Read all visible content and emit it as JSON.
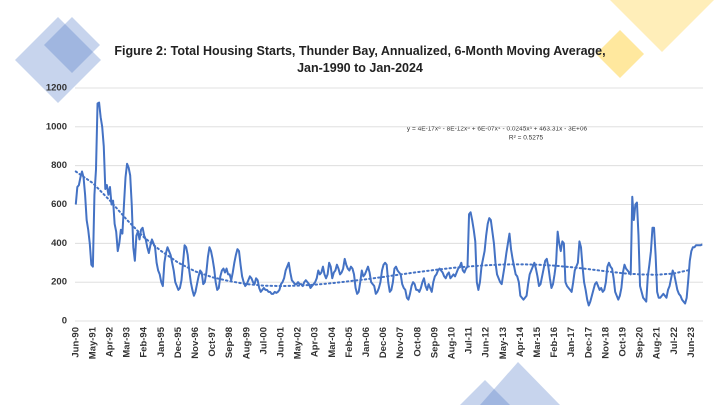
{
  "chart_data": {
    "type": "line",
    "title": "Figure 2: Total Housing Starts, Thunder Bay, Annualized, 6-Month Moving Average, Jan-1990 to Jan-2024",
    "annotations": [
      "y = 4E-17x⁶ - 8E-12x⁵ + 6E-07x⁴ - 0.0245x³ + 463.31x - 3E+06",
      "R² = 0.5275"
    ],
    "ylim": [
      0,
      1200
    ],
    "yticks": [
      0,
      200,
      400,
      600,
      800,
      1000,
      1200
    ],
    "grid": true,
    "categories": [
      "Jun-90",
      null,
      null,
      null,
      null,
      null,
      null,
      null,
      null,
      null,
      null,
      "May-91",
      null,
      null,
      null,
      null,
      null,
      null,
      null,
      null,
      null,
      null,
      "Apr-92",
      null,
      null,
      null,
      null,
      null,
      null,
      null,
      null,
      null,
      null,
      "Mar-93",
      null,
      null,
      null,
      null,
      null,
      null,
      null,
      null,
      null,
      null,
      "Feb-94",
      null,
      null,
      null,
      null,
      null,
      null,
      null,
      null,
      null,
      null,
      "Jan-95",
      null,
      null,
      null,
      null,
      null,
      null,
      null,
      null,
      null,
      null,
      "Dec-95",
      null,
      null,
      null,
      null,
      null,
      null,
      null,
      null,
      null,
      null,
      "Nov-96",
      null,
      null,
      null,
      null,
      null,
      null,
      null,
      null,
      null,
      null,
      "Oct-97",
      null,
      null,
      null,
      null,
      null,
      null,
      null,
      null,
      null,
      null,
      "Sep-98",
      null,
      null,
      null,
      null,
      null,
      null,
      null,
      null,
      null,
      null,
      "Aug-99",
      null,
      null,
      null,
      null,
      null,
      null,
      null,
      null,
      null,
      null,
      "Jul-00",
      null,
      null,
      null,
      null,
      null,
      null,
      null,
      null,
      null,
      null,
      "Jun-01",
      null,
      null,
      null,
      null,
      null,
      null,
      null,
      null,
      null,
      null,
      "May-02",
      null,
      null,
      null,
      null,
      null,
      null,
      null,
      null,
      null,
      null,
      "Apr-03",
      null,
      null,
      null,
      null,
      null,
      null,
      null,
      null,
      null,
      null,
      "Mar-04",
      null,
      null,
      null,
      null,
      null,
      null,
      null,
      null,
      null,
      null,
      "Feb-05",
      null,
      null,
      null,
      null,
      null,
      null,
      null,
      null,
      null,
      null,
      "Jan-06",
      null,
      null,
      null,
      null,
      null,
      null,
      null,
      null,
      null,
      null,
      "Dec-06",
      null,
      null,
      null,
      null,
      null,
      null,
      null,
      null,
      null,
      null,
      "Nov-07",
      null,
      null,
      null,
      null,
      null,
      null,
      null,
      null,
      null,
      null,
      "Oct-08",
      null,
      null,
      null,
      null,
      null,
      null,
      null,
      null,
      null,
      null,
      "Sep-09",
      null,
      null,
      null,
      null,
      null,
      null,
      null,
      null,
      null,
      null,
      "Aug-10",
      null,
      null,
      null,
      null,
      null,
      null,
      null,
      null,
      null,
      null,
      "Jul-11",
      null,
      null,
      null,
      null,
      null,
      null,
      null,
      null,
      null,
      null,
      "Jun-12",
      null,
      null,
      null,
      null,
      null,
      null,
      null,
      null,
      null,
      null,
      "May-13",
      null,
      null,
      null,
      null,
      null,
      null,
      null,
      null,
      null,
      null,
      "Apr-14",
      null,
      null,
      null,
      null,
      null,
      null,
      null,
      null,
      null,
      null,
      "Mar-15",
      null,
      null,
      null,
      null,
      null,
      null,
      null,
      null,
      null,
      null,
      "Feb-16",
      null,
      null,
      null,
      null,
      null,
      null,
      null,
      null,
      null,
      null,
      "Jan-17",
      null,
      null,
      null,
      null,
      null,
      null,
      null,
      null,
      null,
      null,
      "Dec-17",
      null,
      null,
      null,
      null,
      null,
      null,
      null,
      null,
      null,
      null,
      "Nov-18",
      null,
      null,
      null,
      null,
      null,
      null,
      null,
      null,
      null,
      null,
      "Oct-19",
      null,
      null,
      null,
      null,
      null,
      null,
      null,
      null,
      null,
      null,
      "Sep-20",
      null,
      null,
      null,
      null,
      null,
      null,
      null,
      null,
      null,
      null,
      "Aug-21",
      null,
      null,
      null,
      null,
      null,
      null,
      null,
      null,
      null,
      null,
      "Jul-22",
      null,
      null,
      null,
      null,
      null,
      null,
      null,
      null,
      null,
      null,
      "Jun-23",
      null,
      null,
      null,
      null,
      null,
      null,
      null
    ],
    "series": [
      {
        "color": "#4472c4",
        "values": [
          600,
          690,
          700,
          740,
          770,
          740,
          650,
          520,
          470,
          400,
          290,
          280,
          650,
          780,
          1120,
          1125,
          1050,
          1000,
          900,
          680,
          700,
          650,
          690,
          600,
          620,
          500,
          460,
          360,
          400,
          470,
          450,
          600,
          740,
          810,
          790,
          750,
          600,
          380,
          310,
          440,
          460,
          420,
          470,
          480,
          440,
          420,
          380,
          350,
          390,
          420,
          400,
          380,
          300,
          260,
          240,
          200,
          180,
          300,
          350,
          380,
          360,
          340,
          300,
          260,
          200,
          180,
          160,
          170,
          210,
          300,
          390,
          380,
          340,
          260,
          200,
          160,
          130,
          150,
          190,
          230,
          260,
          250,
          190,
          200,
          250,
          330,
          380,
          360,
          320,
          270,
          200,
          160,
          170,
          230,
          260,
          270,
          250,
          270,
          240,
          240,
          210,
          250,
          300,
          340,
          370,
          360,
          290,
          230,
          200,
          180,
          190,
          210,
          230,
          220,
          200,
          190,
          220,
          210,
          170,
          150,
          160,
          170,
          160,
          160,
          150,
          150,
          140,
          140,
          150,
          145,
          150,
          160,
          190,
          200,
          220,
          260,
          280,
          300,
          250,
          210,
          200,
          190,
          190,
          200,
          190,
          190,
          180,
          200,
          210,
          200,
          190,
          170,
          180,
          190,
          200,
          220,
          260,
          240,
          250,
          280,
          240,
          220,
          240,
          300,
          280,
          220,
          250,
          260,
          290,
          270,
          240,
          250,
          270,
          320,
          290,
          270,
          260,
          280,
          270,
          240,
          170,
          140,
          150,
          200,
          260,
          230,
          240,
          260,
          280,
          250,
          200,
          190,
          180,
          140,
          150,
          170,
          200,
          260,
          290,
          300,
          290,
          200,
          150,
          160,
          200,
          270,
          280,
          260,
          250,
          240,
          190,
          170,
          160,
          120,
          110,
          140,
          180,
          200,
          190,
          160,
          160,
          150,
          170,
          200,
          220,
          180,
          160,
          190,
          170,
          150,
          200,
          230,
          240,
          260,
          270,
          260,
          250,
          230,
          220,
          240,
          250,
          220,
          230,
          240,
          230,
          250,
          270,
          280,
          300,
          260,
          250,
          270,
          280,
          550,
          560,
          520,
          470,
          410,
          200,
          160,
          200,
          280,
          320,
          360,
          440,
          500,
          530,
          520,
          460,
          400,
          300,
          240,
          220,
          200,
          190,
          240,
          290,
          350,
          400,
          450,
          370,
          320,
          280,
          240,
          230,
          200,
          130,
          120,
          110,
          120,
          130,
          190,
          240,
          260,
          280,
          300,
          270,
          230,
          180,
          190,
          230,
          270,
          310,
          320,
          280,
          220,
          170,
          190,
          240,
          300,
          460,
          400,
          360,
          410,
          400,
          200,
          180,
          170,
          160,
          150,
          200,
          260,
          280,
          300,
          410,
          380,
          280,
          200,
          160,
          110,
          80,
          100,
          130,
          160,
          190,
          200,
          180,
          160,
          170,
          150,
          160,
          200,
          280,
          300,
          280,
          270,
          220,
          150,
          130,
          110,
          130,
          170,
          250,
          290,
          270,
          260,
          250,
          240,
          640,
          520,
          600,
          610,
          440,
          180,
          150,
          120,
          110,
          100,
          230,
          290,
          360,
          480,
          480,
          340,
          150,
          120,
          120,
          130,
          140,
          130,
          120,
          160,
          180,
          220,
          260,
          240,
          200,
          160,
          140,
          130,
          110,
          100,
          90,
          120,
          210,
          310,
          360,
          380,
          380,
          390,
          390,
          390,
          390,
          395
        ]
      }
    ],
    "trendline": {
      "color": "#4472c4",
      "style": "dotted",
      "x": [
        "Jun-90",
        "May-91",
        "Apr-92",
        "Mar-93",
        "Feb-94",
        "Jan-95",
        "Dec-95",
        "Nov-96",
        "Oct-97",
        "Sep-98",
        "Aug-99",
        "Jul-00",
        "Jun-01",
        "May-02",
        "Apr-03",
        "Mar-04",
        "Feb-05",
        "Jan-06",
        "Dec-06",
        "Nov-07",
        "Oct-08",
        "Sep-09",
        "Aug-10",
        "Jul-11",
        "Jun-12",
        "May-13",
        "Apr-14",
        "Mar-15",
        "Feb-16",
        "Jan-17",
        "Dec-17",
        "Nov-18",
        "Oct-19",
        "Sep-20",
        "Aug-21",
        "Jul-22",
        "Jun-23"
      ],
      "values": [
        770,
        710,
        620,
        520,
        430,
        360,
        300,
        255,
        225,
        205,
        190,
        182,
        180,
        182,
        187,
        195,
        205,
        215,
        227,
        240,
        252,
        263,
        273,
        281,
        287,
        291,
        292,
        290,
        285,
        277,
        267,
        256,
        246,
        240,
        238,
        245,
        265
      ]
    }
  }
}
